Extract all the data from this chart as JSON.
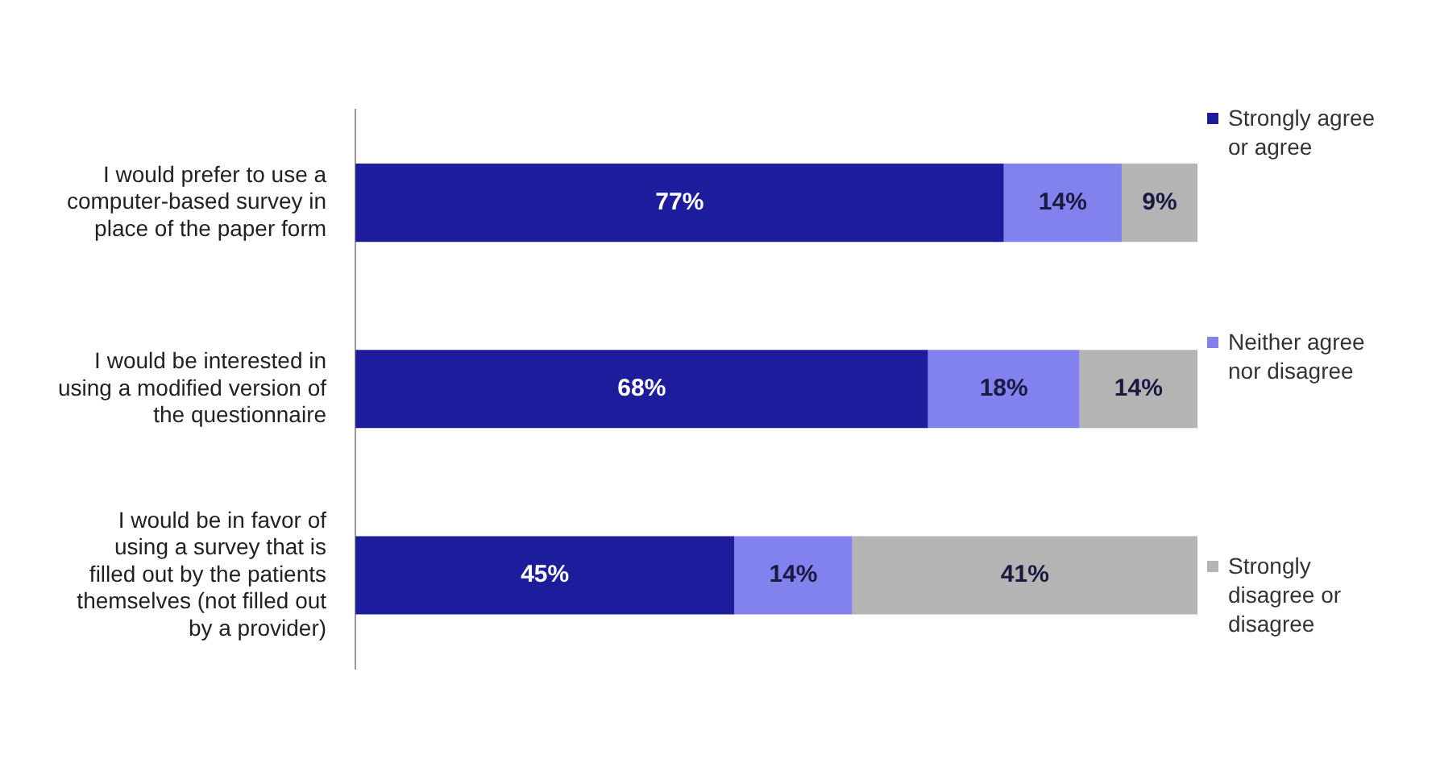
{
  "chart_data": {
    "type": "bar",
    "orientation": "horizontal",
    "stacked": true,
    "categories": [
      "I would prefer to use a computer-based survey in place of the paper form",
      "I would be interested in using a modified version of the questionnaire",
      "I would be in favor of using a survey that is filled out by the patients themselves (not filled out by a provider)"
    ],
    "series": [
      {
        "name": "Strongly agree or agree",
        "color": "#1c1c9c",
        "values": [
          77,
          68,
          45
        ],
        "value_labels": [
          "77%",
          "68%",
          "45%"
        ]
      },
      {
        "name": "Neither agree nor disagree",
        "color": "#8282ee",
        "values": [
          14,
          18,
          14
        ],
        "value_labels": [
          "14%",
          "18%",
          "14%"
        ]
      },
      {
        "name": "Strongly disagree or disagree",
        "color": "#b4b4b4",
        "values": [
          9,
          14,
          41
        ],
        "value_labels": [
          "9%",
          "14%",
          "41%"
        ]
      }
    ],
    "tick_labels": "y",
    "legend": "right"
  }
}
